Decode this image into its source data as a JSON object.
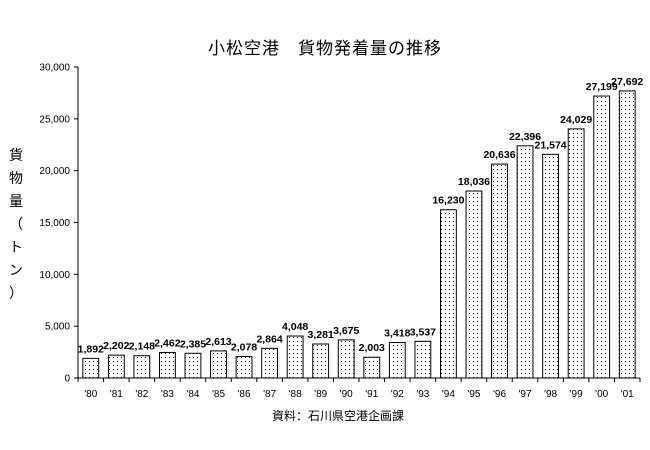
{
  "chart_data": {
    "type": "bar",
    "title": "小松空港　貨物発着量の推移",
    "ylabel": "貨物量（トン）",
    "source": "資料：石川県空港企画課",
    "categories": [
      "'80",
      "'81",
      "'82",
      "'83",
      "'84",
      "'85",
      "'86",
      "'87",
      "'88",
      "'89",
      "'90",
      "'91",
      "'92",
      "'93",
      "'94",
      "'95",
      "'96",
      "'97",
      "'98",
      "'99",
      "'00",
      "'01"
    ],
    "values": [
      1892,
      2202,
      2148,
      2462,
      2385,
      2613,
      2078,
      2864,
      4048,
      3281,
      3675,
      2003,
      3418,
      3537,
      16230,
      18036,
      20636,
      22396,
      21574,
      24029,
      27199,
      27692
    ],
    "data_labels": [
      "1,892",
      "2,202",
      "2,148",
      "2,462",
      "2,385",
      "2,613",
      "2,078",
      "2,864",
      "4,048",
      "3,281",
      "3,675",
      "2,003",
      "3,418",
      "3,537",
      "16,230",
      "18,036",
      "20,636",
      "22,396",
      "21,574",
      "24,029",
      "27,199",
      "27,692"
    ],
    "yticks": [
      "0",
      "5,000",
      "10,000",
      "15,000",
      "20,000",
      "25,000",
      "30,000"
    ],
    "ylim": [
      0,
      30000
    ],
    "grid": false,
    "bar_pattern": "dotted",
    "colors": {
      "bar_fill": "#ffffff",
      "bar_dots": "#000000",
      "axis": "#000000"
    }
  }
}
